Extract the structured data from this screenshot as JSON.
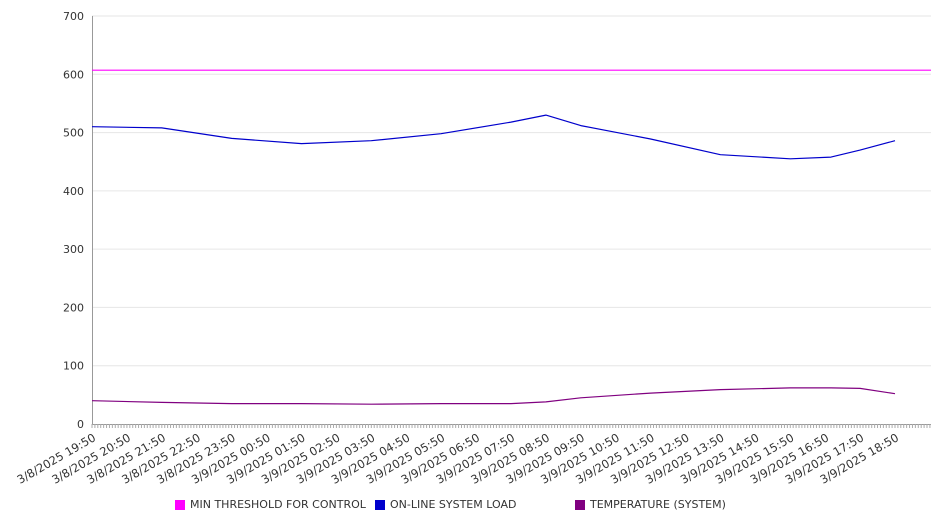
{
  "chart_data": {
    "type": "line",
    "ylim": [
      0,
      700
    ],
    "y_ticks": [
      "0",
      "100",
      "200",
      "300",
      "400",
      "500",
      "600",
      "700"
    ],
    "x_tick_labels": [
      "3/8/2025 19:50",
      "3/8/2025 20:50",
      "3/8/2025 21:50",
      "3/8/2025 22:50",
      "3/8/2025 23:50",
      "3/9/2025 00:50",
      "3/9/2025 01:50",
      "3/9/2025 02:50",
      "3/9/2025 03:50",
      "3/9/2025 04:50",
      "3/9/2025 05:50",
      "3/9/2025 06:50",
      "3/9/2025 07:50",
      "3/9/2025 08:50",
      "3/9/2025 09:50",
      "3/9/2025 10:50",
      "3/9/2025 11:50",
      "3/9/2025 12:50",
      "3/9/2025 13:50",
      "3/9/2025 14:50",
      "3/9/2025 15:50",
      "3/9/2025 16:50",
      "3/9/2025 17:50",
      "3/9/2025 18:50"
    ],
    "x": [
      "3/8/2025 19:50",
      "3/8/2025 21:50",
      "3/8/2025 23:50",
      "3/9/2025 01:50",
      "3/9/2025 03:50",
      "3/9/2025 05:50",
      "3/9/2025 07:50",
      "3/9/2025 08:50",
      "3/9/2025 09:50",
      "3/9/2025 11:50",
      "3/9/2025 13:50",
      "3/9/2025 15:50",
      "3/9/2025 17:00",
      "3/9/2025 17:50",
      "3/9/2025 18:50"
    ],
    "grid": true,
    "series": [
      {
        "name": "MIN THRESHOLD FOR CONTROL",
        "color": "#ff00ff",
        "values": [
          607,
          607,
          607,
          607,
          607,
          607,
          607,
          607,
          607,
          607,
          607,
          607,
          607,
          607,
          607
        ]
      },
      {
        "name": "ON-LINE SYSTEM LOAD",
        "color": "#0000cc",
        "values": [
          510,
          508,
          490,
          481,
          486,
          498,
          518,
          530,
          512,
          489,
          462,
          455,
          458,
          470,
          486
        ]
      },
      {
        "name": "TEMPERATURE (SYSTEM)",
        "color": "#800080",
        "values": [
          40,
          37,
          35,
          35,
          34,
          35,
          35,
          38,
          45,
          53,
          59,
          62,
          62,
          61,
          52
        ]
      }
    ]
  }
}
